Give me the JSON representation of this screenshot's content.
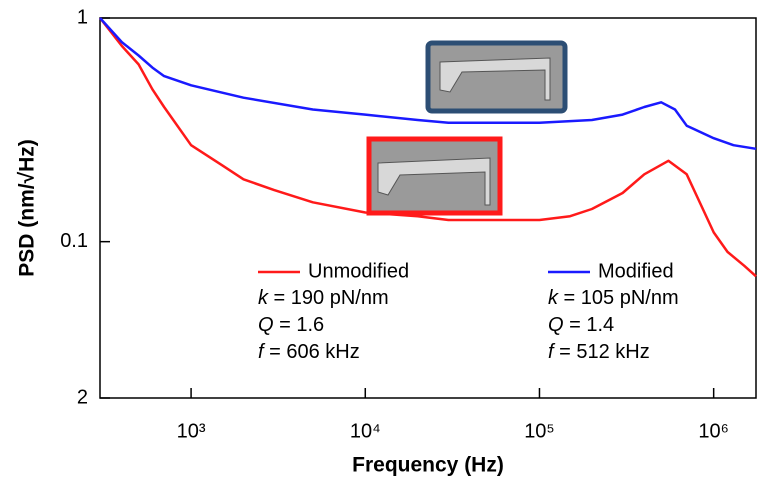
{
  "chart_data": {
    "type": "line",
    "xlabel": "Frequency (Hz)",
    "ylabel": "PSD (nm/√Hz)",
    "xscale": "log",
    "yscale": "log",
    "xlim": [
      300,
      1750000
    ],
    "ylim": [
      0.02,
      1
    ],
    "xticks": [
      {
        "value": 1000,
        "label": "10³"
      },
      {
        "value": 10000,
        "label": "10⁴"
      },
      {
        "value": 100000,
        "label": "10⁵"
      },
      {
        "value": 1000000,
        "label": "10⁶"
      }
    ],
    "yticks": [
      {
        "value": 0.02,
        "label": "2"
      },
      0.1,
      1
    ],
    "series": [
      {
        "name": "Unmodified",
        "color": "#ff1a1a",
        "x": [
          300,
          400,
          500,
          600,
          700,
          1000,
          1500,
          2000,
          3000,
          5000,
          10000,
          20000,
          30000,
          50000,
          100000,
          150000,
          200000,
          300000,
          400000,
          550000,
          700000,
          800000,
          1000000,
          1200000,
          1500000,
          1750000
        ],
        "values": [
          1,
          0.75,
          0.62,
          0.48,
          0.4,
          0.27,
          0.22,
          0.19,
          0.17,
          0.15,
          0.135,
          0.13,
          0.125,
          0.125,
          0.125,
          0.13,
          0.14,
          0.165,
          0.2,
          0.23,
          0.2,
          0.16,
          0.11,
          0.09,
          0.078,
          0.07
        ],
        "annotation": [
          {
            "symbol": "k",
            "text": " = 190 pN/nm"
          },
          {
            "symbol": "Q",
            "text": " = 1.6"
          },
          {
            "symbol": "f",
            "text": " = 606 kHz"
          }
        ]
      },
      {
        "name": "Modified",
        "color": "#1a1aff",
        "x": [
          300,
          400,
          500,
          600,
          700,
          1000,
          2000,
          5000,
          10000,
          20000,
          30000,
          100000,
          200000,
          300000,
          400000,
          500000,
          600000,
          700000,
          1000000,
          1300000,
          1750000
        ],
        "values": [
          1,
          0.78,
          0.68,
          0.6,
          0.55,
          0.5,
          0.44,
          0.39,
          0.37,
          0.35,
          0.34,
          0.34,
          0.35,
          0.37,
          0.4,
          0.42,
          0.39,
          0.33,
          0.29,
          0.27,
          0.26
        ],
        "annotation": [
          {
            "symbol": "k",
            "text": " = 105 pN/nm"
          },
          {
            "symbol": "Q",
            "text": " = 1.4"
          },
          {
            "symbol": "f",
            "text": " = 512 kHz"
          }
        ]
      }
    ]
  }
}
